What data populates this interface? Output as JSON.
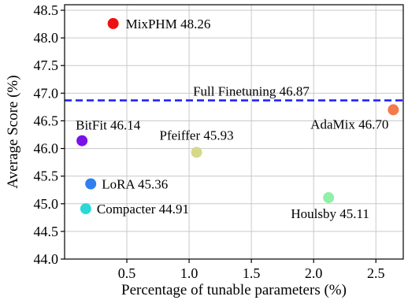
{
  "chart_data": {
    "type": "scatter",
    "xlabel": "Percentage of tunable parameters (%)",
    "ylabel": "Average Score (%)",
    "xlim": [
      0.0,
      2.72
    ],
    "ylim": [
      44.0,
      48.6
    ],
    "x_ticks": [
      0.5,
      1.0,
      1.5,
      2.0,
      2.5
    ],
    "x_tick_labels": [
      "0.5",
      "1.0",
      "1.5",
      "2.0",
      "2.5"
    ],
    "y_ticks": [
      44.0,
      44.5,
      45.0,
      45.5,
      46.0,
      46.5,
      47.0,
      47.5,
      48.0,
      48.5
    ],
    "y_tick_labels": [
      "44.0",
      "44.5",
      "45.0",
      "45.5",
      "46.0",
      "46.5",
      "47.0",
      "47.5",
      "48.0",
      "48.5"
    ],
    "grid": true,
    "reference_line": {
      "label": "Full Finetuning 46.87",
      "y": 46.87,
      "color": "#1a1aff",
      "style": "dashed"
    },
    "points": [
      {
        "label": "MixPHM 48.26",
        "x": 0.39,
        "y": 48.26,
        "color": "#ee1111"
      },
      {
        "label": "AdaMix 46.70",
        "x": 2.64,
        "y": 46.7,
        "color": "#f5794a"
      },
      {
        "label": "BitFit 46.14",
        "x": 0.14,
        "y": 46.14,
        "color": "#7a12e8"
      },
      {
        "label": "Pfeiffer 45.93",
        "x": 1.06,
        "y": 45.93,
        "color": "#d6d98a"
      },
      {
        "label": "LoRA 45.36",
        "x": 0.21,
        "y": 45.36,
        "color": "#2f7ff0"
      },
      {
        "label": "Houlsby 45.11",
        "x": 2.12,
        "y": 45.11,
        "color": "#8ff0a8"
      },
      {
        "label": "Compacter 44.91",
        "x": 0.17,
        "y": 44.91,
        "color": "#2ad8d8"
      }
    ]
  }
}
